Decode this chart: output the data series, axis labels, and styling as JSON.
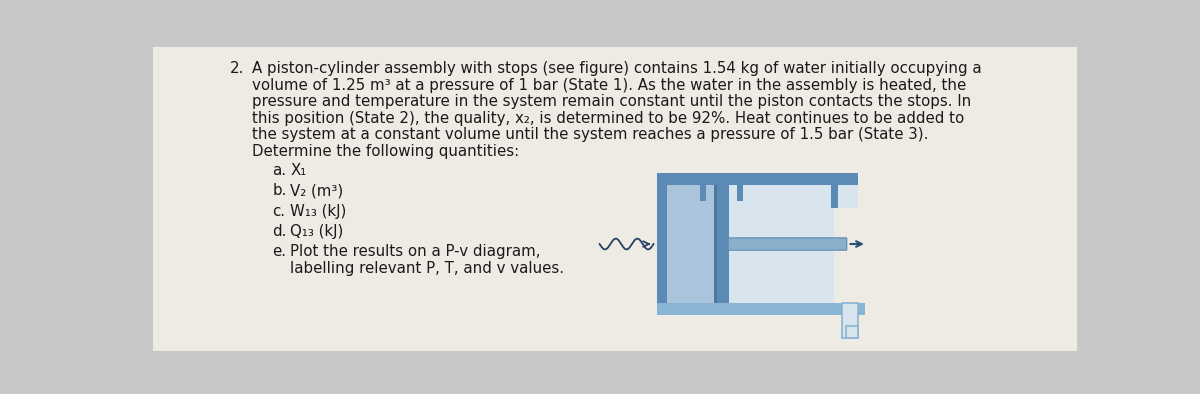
{
  "bg_color": "#c8c8c8",
  "paper_color": "#eeebe5",
  "text_color": "#1a1a1a",
  "problem_number": "2.",
  "main_text_lines": [
    "A piston-cylinder assembly with stops (see figure) contains 1.54 kg of water initially occupying a",
    "volume of 1.25 m³ at a pressure of 1 bar (State 1). As the water in the assembly is heated, the",
    "pressure and temperature in the system remain constant until the piston contacts the stops. In",
    "this position (State 2), the quality, x₂, is determined to be 92%. Heat continues to be added to",
    "the system at a constant volume until the system reaches a pressure of 1.5 bar (State 3).",
    "Determine the following quantities:"
  ],
  "items": [
    {
      "label": "a.",
      "text": "X₁"
    },
    {
      "label": "b.",
      "text": "V₂ (m³)"
    },
    {
      "label": "c.",
      "text": "W₁₃ (kJ)"
    },
    {
      "label": "d.",
      "text": "Q₁₃ (kJ)"
    },
    {
      "label": "e.",
      "text": "Plot the results on a P-v diagram,",
      "text2": "labelling relevant P, T, and v values."
    }
  ],
  "cyl_color_dark": "#5b8ab5",
  "cyl_color_light": "#8ab4d4",
  "cyl_fill": "#aac4dc",
  "cyl_inner_bg": "#d8e4ee"
}
